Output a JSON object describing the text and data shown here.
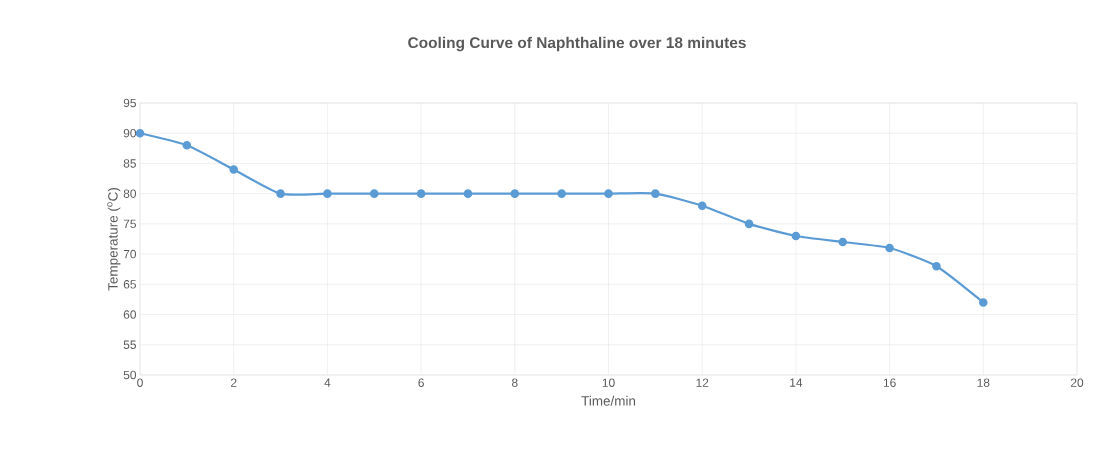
{
  "chart_data": {
    "type": "line",
    "title": "Cooling Curve of Naphthaline over 18 minutes",
    "xlabel": "Time/min",
    "ylabel": "Temperature ($^{o}$C)",
    "x": [
      0,
      1,
      2,
      3,
      4,
      5,
      6,
      7,
      8,
      9,
      10,
      11,
      12,
      13,
      14,
      15,
      16,
      17,
      18
    ],
    "series": [
      {
        "color": "#5b9bd5",
        "values": [
          90,
          88,
          84,
          80,
          80,
          80,
          80,
          80,
          80,
          80,
          80,
          80,
          78,
          75,
          73,
          72,
          71,
          68,
          62
        ]
      }
    ],
    "xlim": [
      0,
      20
    ],
    "xticks": [
      0,
      2,
      4,
      6,
      8,
      10,
      12,
      14,
      16,
      18,
      20
    ],
    "ylim": [
      50,
      95
    ],
    "yticks": [
      50,
      55,
      60,
      65,
      70,
      75,
      80,
      85,
      90,
      95
    ],
    "grid": true,
    "marker": "circle",
    "line_style": "solid",
    "legend": false
  }
}
